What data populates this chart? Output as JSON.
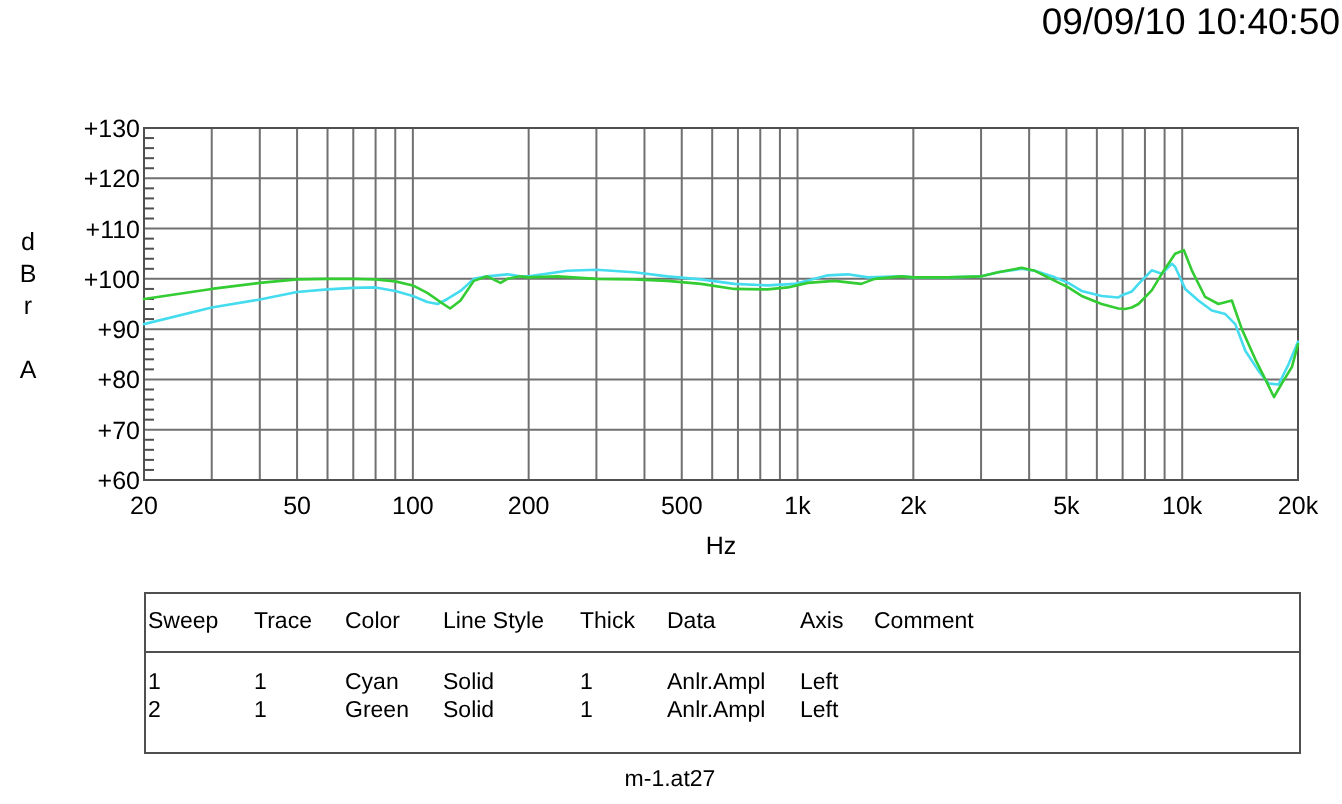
{
  "chart_data": {
    "type": "line",
    "xlabel": "Hz",
    "ylabel": "dBr A",
    "log": "x",
    "grid": true,
    "line_style": "solid",
    "xlim": [
      20,
      20000
    ],
    "ylim": [
      60,
      130
    ],
    "xticks": [
      20,
      {
        "value": 30,
        "label": null
      },
      {
        "value": 40,
        "label": null
      },
      50,
      {
        "value": 60,
        "label": null
      },
      {
        "value": 70,
        "label": null
      },
      {
        "value": 80,
        "label": null
      },
      {
        "value": 90,
        "label": null
      },
      100,
      200,
      {
        "value": 300,
        "label": null
      },
      {
        "value": 400,
        "label": null
      },
      500,
      {
        "value": 600,
        "label": null
      },
      {
        "value": 700,
        "label": null
      },
      {
        "value": 800,
        "label": null
      },
      {
        "value": 900,
        "label": null
      },
      {
        "value": 1000,
        "label": "1k"
      },
      {
        "value": 2000,
        "label": "2k"
      },
      {
        "value": 3000,
        "label": null
      },
      {
        "value": 4000,
        "label": null
      },
      {
        "value": 5000,
        "label": "5k"
      },
      {
        "value": 6000,
        "label": null
      },
      {
        "value": 7000,
        "label": null
      },
      {
        "value": 8000,
        "label": null
      },
      {
        "value": 9000,
        "label": null
      },
      {
        "value": 10000,
        "label": "10k"
      },
      {
        "value": 20000,
        "label": "20k"
      }
    ],
    "yticks": [
      {
        "value": 60,
        "label": "+60"
      },
      {
        "value": 62,
        "label": null
      },
      {
        "value": 64,
        "label": null
      },
      {
        "value": 66,
        "label": null
      },
      {
        "value": 68,
        "label": null
      },
      {
        "value": 70,
        "label": "+70"
      },
      {
        "value": 72,
        "label": null
      },
      {
        "value": 74,
        "label": null
      },
      {
        "value": 76,
        "label": null
      },
      {
        "value": 78,
        "label": null
      },
      {
        "value": 80,
        "label": "+80"
      },
      {
        "value": 82,
        "label": null
      },
      {
        "value": 84,
        "label": null
      },
      {
        "value": 86,
        "label": null
      },
      {
        "value": 88,
        "label": null
      },
      {
        "value": 90,
        "label": "+90"
      },
      {
        "value": 92,
        "label": null
      },
      {
        "value": 94,
        "label": null
      },
      {
        "value": 96,
        "label": null
      },
      {
        "value": 98,
        "label": null
      },
      {
        "value": 100,
        "label": "+100"
      },
      {
        "value": 102,
        "label": null
      },
      {
        "value": 104,
        "label": null
      },
      {
        "value": 106,
        "label": null
      },
      {
        "value": 108,
        "label": null
      },
      {
        "value": 110,
        "label": "+110"
      },
      {
        "value": 112,
        "label": null
      },
      {
        "value": 114,
        "label": null
      },
      {
        "value": 116,
        "label": null
      },
      {
        "value": 118,
        "label": null
      },
      {
        "value": 120,
        "label": "+120"
      },
      {
        "value": 122,
        "label": null
      },
      {
        "value": 124,
        "label": null
      },
      {
        "value": 126,
        "label": null
      },
      {
        "value": 128,
        "label": null
      },
      {
        "value": 130,
        "label": "+130"
      }
    ],
    "series": [
      {
        "color": "#45dcef",
        "x": [
          20,
          30,
          40,
          50,
          60,
          70,
          80,
          90,
          100,
          109,
          116,
          123,
          133,
          144,
          156,
          176,
          190,
          200,
          252,
          300,
          376,
          459,
          561,
          685,
          836,
          982,
          1199,
          1352,
          1524,
          1862,
          2000,
          2462,
          3007,
          3323,
          3820,
          4140,
          4668,
          5055,
          5477,
          6174,
          6825,
          7000,
          7400,
          7700,
          8333,
          8848,
          9396,
          9583,
          10181,
          11016,
          11940,
          12940,
          13740,
          14590,
          15790,
          16770,
          17800,
          18900,
          20000
        ],
        "values": [
          91,
          94.3,
          95.9,
          97.4,
          97.9,
          98.2,
          98.3,
          97.6,
          96.6,
          95.4,
          95,
          96,
          97.6,
          100,
          100.5,
          100.9,
          100.5,
          100.5,
          101.6,
          101.8,
          101.3,
          100.5,
          99.9,
          99,
          98.7,
          99,
          100.7,
          100.9,
          100.3,
          100.5,
          100.3,
          100.3,
          100.5,
          101.3,
          102,
          101.6,
          100.3,
          99.2,
          97.6,
          96.6,
          96.3,
          96.8,
          97.5,
          99,
          101.7,
          101,
          103,
          102.4,
          98,
          95.7,
          93.7,
          93,
          91,
          85.7,
          81.7,
          79.2,
          79,
          83,
          87.5
        ]
      },
      {
        "color": "#33cc33",
        "x": [
          20,
          30,
          40,
          50,
          60,
          70,
          80,
          90,
          100,
          109,
          120,
          125,
          133,
          144,
          156,
          169,
          176,
          190,
          200,
          237,
          300,
          376,
          459,
          561,
          685,
          836,
          943,
          1063,
          1248,
          1464,
          1587,
          1862,
          2000,
          2462,
          3007,
          3323,
          3820,
          4140,
          4668,
          5055,
          5477,
          6174,
          6825,
          7104,
          7393,
          7697,
          8333,
          8848,
          9583,
          10100,
          10590,
          11471,
          12424,
          13460,
          14290,
          15490,
          16450,
          17320,
          18160,
          19290,
          20000
        ],
        "values": [
          96,
          98,
          99.2,
          99.9,
          100,
          100,
          99.9,
          99.5,
          98.7,
          97.2,
          95,
          94.1,
          95.7,
          99.6,
          100.5,
          99.2,
          100,
          100.5,
          100.3,
          100.5,
          100,
          99.9,
          99.6,
          99,
          98,
          97.9,
          98.3,
          99.2,
          99.6,
          99,
          100,
          100.5,
          100.3,
          100.3,
          100.5,
          101.3,
          102.2,
          101.6,
          99.6,
          98.3,
          96.6,
          95,
          94.1,
          94,
          94.3,
          95,
          97.7,
          101,
          105,
          105.7,
          101.7,
          96.4,
          95,
          95.7,
          90,
          84,
          80,
          76.5,
          79.2,
          82.5,
          87
        ]
      }
    ],
    "annotations": [
      "09/09/10 10:40:50",
      "Sweep",
      "Trace",
      "Color",
      "Line Style",
      "Thick",
      "Data",
      "Axis",
      "Comment",
      "1",
      "1",
      "Cyan",
      "Solid",
      "1",
      "Anlr.Ampl",
      "Left",
      "2",
      "1",
      "Green",
      "Solid",
      "1",
      "Anlr.Ampl",
      "Left",
      "m-1.at27"
    ]
  }
}
